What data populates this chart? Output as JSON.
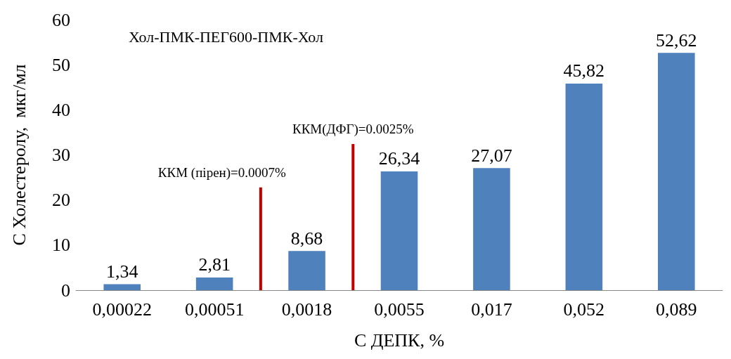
{
  "chart_data": {
    "type": "bar",
    "title": "Хол-ПМК-ПЕГ600-ПМК-Хол",
    "xlabel": "С ДЕПК, %",
    "ylabel": "С Холестеролу,  мкг/мл",
    "categories": [
      "0,00022",
      "0,00051",
      "0,0018",
      "0,0055",
      "0,017",
      "0,052",
      "0,089"
    ],
    "values": [
      1.34,
      2.81,
      8.68,
      26.34,
      27.07,
      45.82,
      52.62
    ],
    "value_labels": [
      "1,34",
      "2,81",
      "8,68",
      "26,34",
      "27,07",
      "45,82",
      "52,62"
    ],
    "color": "#4f81bd",
    "ylim": [
      0,
      60
    ],
    "yticks": [
      0,
      10,
      20,
      30,
      40,
      50,
      60
    ],
    "grid": false,
    "annotations": [
      "ККМ (пірен)=0.0007%",
      "ККМ(ДФГ)=0.0025%"
    ]
  }
}
